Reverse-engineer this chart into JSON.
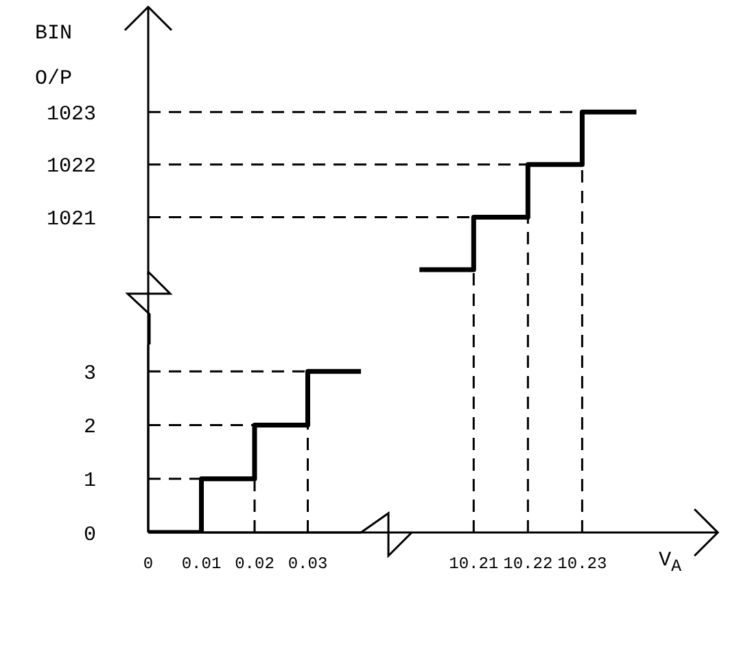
{
  "chart_data": [
    {
      "type": "step",
      "ylabel": "BIN O/P",
      "xlabel": "V$_{A}$",
      "x": [
        10.2,
        10.21,
        10.22,
        10.23,
        10.24
      ],
      "series": [
        {
          "color": "#000000",
          "values": [
            1020,
            1021,
            1022,
            1023,
            1023
          ]
        }
      ],
      "xlim": [
        10.15,
        10.255
      ],
      "xticks": [
        10.21,
        10.22,
        10.23
      ],
      "ylim": [
        1015,
        1025
      ],
      "yticks": [
        1021,
        1022,
        1023
      ],
      "line_style": "solid",
      "ref_lines": [
        {
          "axis": "y",
          "value": 1021,
          "line_style": "dashed"
        },
        {
          "axis": "y",
          "value": 1022,
          "line_style": "dashed"
        },
        {
          "axis": "y",
          "value": 1023,
          "line_style": "dashed"
        },
        {
          "axis": "x",
          "value": 10.21,
          "line_style": "dashed"
        },
        {
          "axis": "x",
          "value": 10.22,
          "line_style": "dashed"
        },
        {
          "axis": "x",
          "value": 10.23,
          "line_style": "dashed"
        }
      ]
    },
    {
      "type": "step",
      "x": [
        0,
        0.01,
        0.02,
        0.03,
        0.04
      ],
      "series": [
        {
          "color": "#000000",
          "values": [
            0,
            1,
            2,
            3,
            3
          ]
        }
      ],
      "xlim": [
        0,
        0.04
      ],
      "xticks": [
        0,
        0.01,
        0.02,
        0.03
      ],
      "ylim": [
        0,
        3.5
      ],
      "yticks": [
        0,
        1,
        2,
        3
      ],
      "line_style": "solid",
      "ref_lines": [
        {
          "axis": "y",
          "value": 1,
          "line_style": "dashed"
        },
        {
          "axis": "y",
          "value": 2,
          "line_style": "dashed"
        },
        {
          "axis": "y",
          "value": 3,
          "line_style": "dashed"
        },
        {
          "axis": "x",
          "value": 0.02,
          "line_style": "dashed"
        },
        {
          "axis": "x",
          "value": 0.03,
          "line_style": "dashed"
        }
      ]
    }
  ]
}
